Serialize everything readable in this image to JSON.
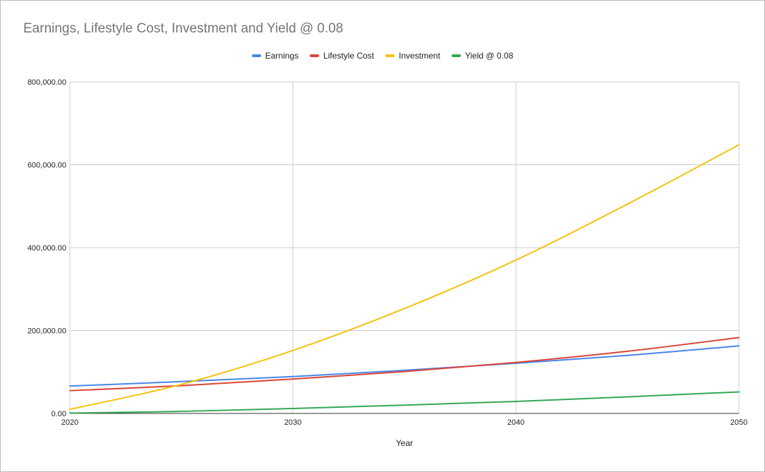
{
  "chart_data": {
    "type": "line",
    "title": "Earnings, Lifestyle Cost, Investment and Yield @ 0.08",
    "xlabel": "Year",
    "ylabel": "",
    "xlim": [
      2020,
      2050
    ],
    "ylim": [
      0,
      800000
    ],
    "x_ticks": [
      "2020",
      "2030",
      "2040",
      "2050"
    ],
    "y_ticks": [
      "800,000.00",
      "600,000.00",
      "400,000.00",
      "200,000.00",
      "0.00"
    ],
    "grid": true,
    "legend_position": "top",
    "x": [
      2020,
      2025,
      2030,
      2035,
      2040,
      2045,
      2050
    ],
    "series": [
      {
        "name": "Earnings",
        "color": "#4a86e8",
        "values": [
          66000,
          77000,
          89000,
          104000,
          121000,
          140000,
          163000
        ]
      },
      {
        "name": "Lifestyle Cost",
        "color": "#db4437",
        "values": [
          55000,
          67000,
          83000,
          101000,
          123000,
          150000,
          183000
        ]
      },
      {
        "name": "Investment",
        "color": "#f4c20d",
        "values": [
          10000,
          70000,
          152000,
          253000,
          370000,
          505000,
          648000
        ]
      },
      {
        "name": "Yield @ 0.08",
        "color": "#34a853",
        "values": [
          800,
          5000,
          12000,
          20000,
          29000,
          40000,
          52000
        ]
      }
    ]
  }
}
